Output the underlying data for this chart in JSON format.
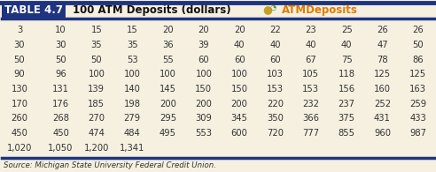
{
  "title_label": "TABLE 4.7",
  "title_text": "100 ATM Deposits (dollars)",
  "title_link": "ATMDeposits",
  "title_bg": "#1f3480",
  "title_text_color": "#ffffff",
  "link_color": "#e07b00",
  "bg_color": "#f5f0e0",
  "header_line_color": "#1f3480",
  "top_line_color": "#1f3480",
  "source_text": "Source: Michigan State University Federal Credit Union.",
  "rows": [
    [
      "3",
      "10",
      "15",
      "15",
      "20",
      "20",
      "20",
      "22",
      "23",
      "25",
      "26",
      "26"
    ],
    [
      "30",
      "30",
      "35",
      "35",
      "36",
      "39",
      "40",
      "40",
      "40",
      "40",
      "47",
      "50"
    ],
    [
      "50",
      "50",
      "50",
      "53",
      "55",
      "60",
      "60",
      "60",
      "67",
      "75",
      "78",
      "86"
    ],
    [
      "90",
      "96",
      "100",
      "100",
      "100",
      "100",
      "100",
      "103",
      "105",
      "118",
      "125",
      "125"
    ],
    [
      "130",
      "131",
      "139",
      "140",
      "145",
      "150",
      "150",
      "153",
      "153",
      "156",
      "160",
      "163"
    ],
    [
      "170",
      "176",
      "185",
      "198",
      "200",
      "200",
      "200",
      "220",
      "232",
      "237",
      "252",
      "259"
    ],
    [
      "260",
      "268",
      "270",
      "279",
      "295",
      "309",
      "345",
      "350",
      "366",
      "375",
      "431",
      "433"
    ],
    [
      "450",
      "450",
      "474",
      "484",
      "495",
      "553",
      "600",
      "720",
      "777",
      "855",
      "960",
      "987"
    ],
    [
      "1,020",
      "1,050",
      "1,200",
      "1,341",
      "",
      "",
      "",
      "",
      "",
      "",
      "",
      ""
    ]
  ],
  "text_color": "#333333",
  "data_fontsize": 7.2,
  "source_fontsize": 6.2,
  "header_fontsize": 8.5,
  "label_fontsize": 8.5
}
